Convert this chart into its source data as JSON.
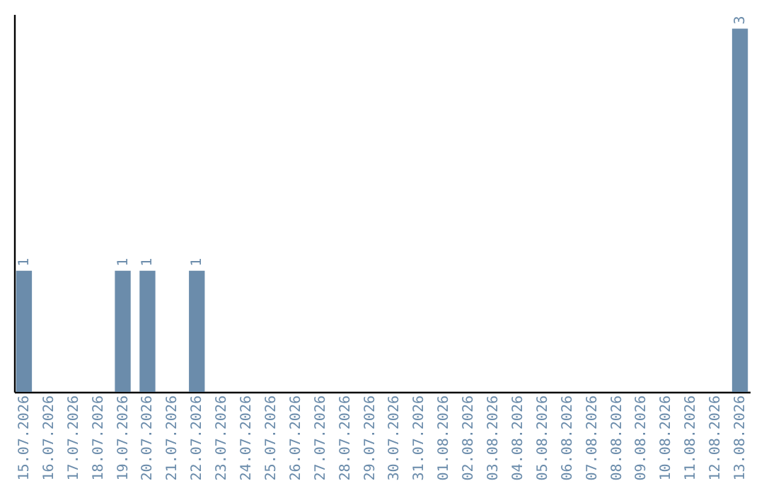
{
  "chart_data": {
    "type": "bar",
    "categories": [
      "15.07.2026",
      "16.07.2026",
      "17.07.2026",
      "18.07.2026",
      "19.07.2026",
      "20.07.2026",
      "21.07.2026",
      "22.07.2026",
      "23.07.2026",
      "24.07.2026",
      "25.07.2026",
      "26.07.2026",
      "27.07.2026",
      "28.07.2026",
      "29.07.2026",
      "30.07.2026",
      "31.07.2026",
      "01.08.2026",
      "02.08.2026",
      "03.08.2026",
      "04.08.2026",
      "05.08.2026",
      "06.08.2026",
      "07.08.2026",
      "08.08.2026",
      "09.08.2026",
      "10.08.2026",
      "11.08.2026",
      "12.08.2026",
      "13.08.2026"
    ],
    "values": [
      1,
      0,
      0,
      0,
      1,
      1,
      0,
      1,
      0,
      0,
      0,
      0,
      0,
      0,
      0,
      0,
      0,
      0,
      0,
      0,
      0,
      0,
      0,
      0,
      0,
      0,
      0,
      0,
      0,
      3
    ],
    "value_labels": [
      "1",
      null,
      null,
      null,
      "1",
      "1",
      null,
      "1",
      null,
      null,
      null,
      null,
      null,
      null,
      null,
      null,
      null,
      null,
      null,
      null,
      null,
      null,
      null,
      null,
      null,
      null,
      null,
      null,
      null,
      "3"
    ],
    "color": "#6b8cab",
    "ylim": [
      0,
      3.12
    ]
  }
}
